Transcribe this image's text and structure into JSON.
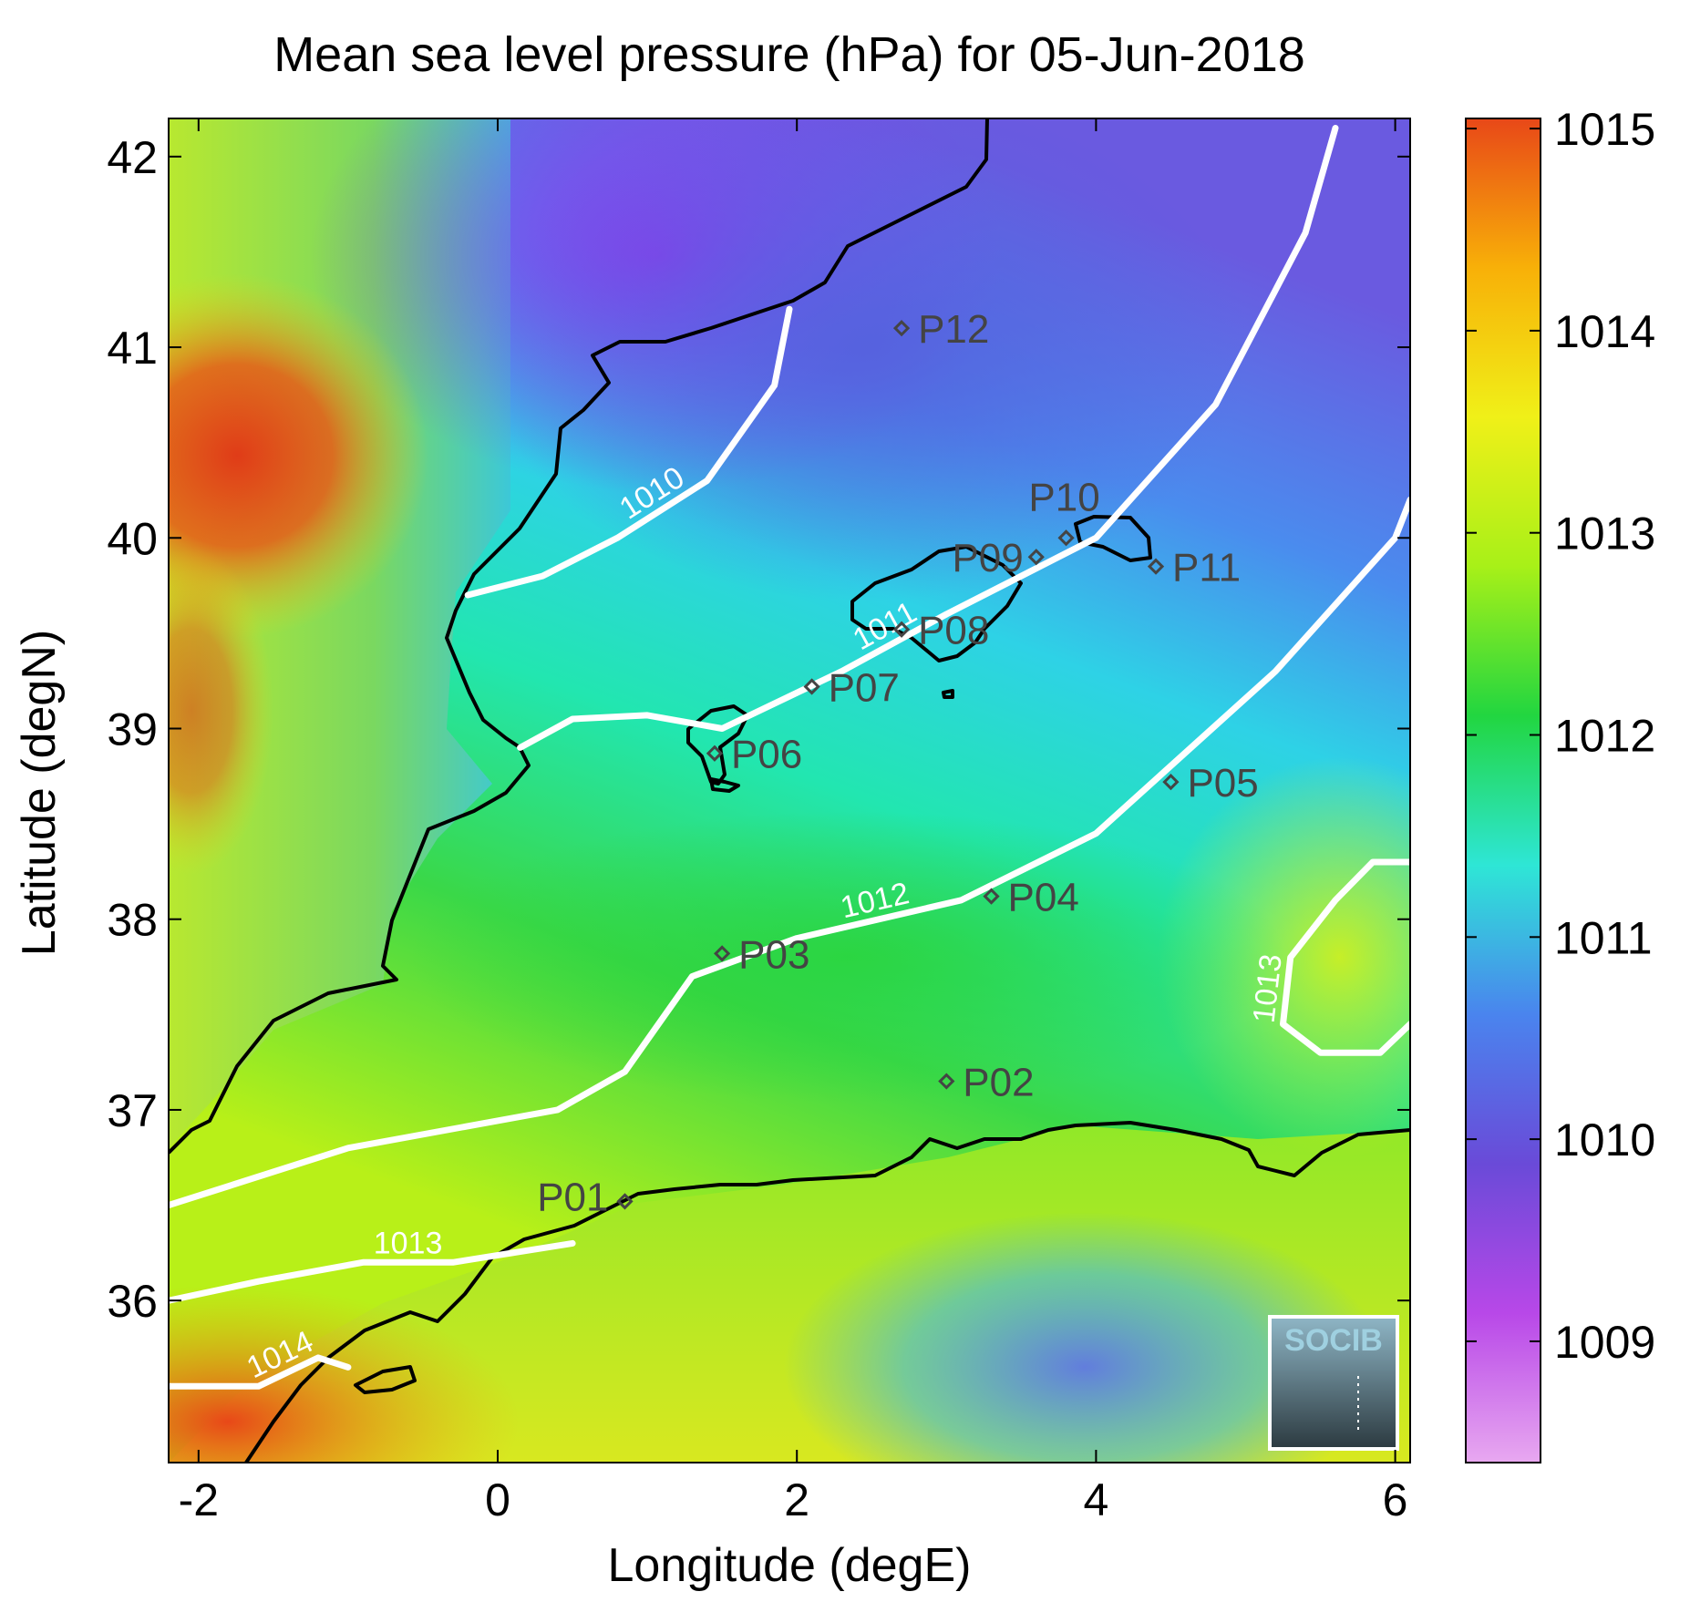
{
  "title": "Mean sea level pressure (hPa) for 05-Jun-2018",
  "xlabel": "Longitude (degE)",
  "ylabel": "Latitude (degN)",
  "logo_text": "SOCIB",
  "chart_data": {
    "type": "heatmap",
    "title": "Mean sea level pressure (hPa) for 05-Jun-2018",
    "xlabel": "Longitude (degE)",
    "ylabel": "Latitude (degN)",
    "xlim": [
      -2.2,
      6.1
    ],
    "ylim": [
      35.15,
      42.2
    ],
    "x_ticks": [
      {
        "value": -2,
        "label": "-2"
      },
      {
        "value": 0,
        "label": "0"
      },
      {
        "value": 2,
        "label": "2"
      },
      {
        "value": 4,
        "label": "4"
      },
      {
        "value": 6,
        "label": "6"
      }
    ],
    "y_ticks": [
      {
        "value": 36,
        "label": "36"
      },
      {
        "value": 37,
        "label": "37"
      },
      {
        "value": 38,
        "label": "38"
      },
      {
        "value": 39,
        "label": "39"
      },
      {
        "value": 40,
        "label": "40"
      },
      {
        "value": 41,
        "label": "41"
      },
      {
        "value": 42,
        "label": "42"
      }
    ],
    "colorbar": {
      "range": [
        1008.4,
        1015.05
      ],
      "ticks": [
        {
          "value": 1009,
          "label": "1009"
        },
        {
          "value": 1010,
          "label": "1010"
        },
        {
          "value": 1011,
          "label": "1011"
        },
        {
          "value": 1012,
          "label": "1012"
        },
        {
          "value": 1013,
          "label": "1013"
        },
        {
          "value": 1014,
          "label": "1014"
        },
        {
          "value": 1015,
          "label": "1015"
        }
      ],
      "colors": [
        "#e8a8f0",
        "#b848e8",
        "#6a4ad8",
        "#4a84ee",
        "#2ee6d6",
        "#22d640",
        "#a8f018",
        "#f0f018",
        "#f8b008",
        "#e84818"
      ]
    },
    "stations": [
      {
        "name": "P01",
        "lon": 0.85,
        "lat": 36.52
      },
      {
        "name": "P02",
        "lon": 3.0,
        "lat": 37.15
      },
      {
        "name": "P03",
        "lon": 1.5,
        "lat": 37.82
      },
      {
        "name": "P04",
        "lon": 3.3,
        "lat": 38.12
      },
      {
        "name": "P05",
        "lon": 4.5,
        "lat": 38.72
      },
      {
        "name": "P06",
        "lon": 1.45,
        "lat": 38.87
      },
      {
        "name": "P07",
        "lon": 2.1,
        "lat": 39.22
      },
      {
        "name": "P08",
        "lon": 2.7,
        "lat": 39.52
      },
      {
        "name": "P09",
        "lon": 3.6,
        "lat": 39.9
      },
      {
        "name": "P10",
        "lon": 3.8,
        "lat": 40.0
      },
      {
        "name": "P11",
        "lon": 4.4,
        "lat": 39.85
      },
      {
        "name": "P12",
        "lon": 2.7,
        "lat": 41.1
      }
    ],
    "contours": [
      {
        "level": 1010,
        "label": "1010",
        "points": [
          [
            -0.2,
            39.7
          ],
          [
            0.3,
            39.8
          ],
          [
            0.8,
            40.0
          ],
          [
            1.4,
            40.3
          ],
          [
            1.85,
            40.8
          ],
          [
            1.95,
            41.2
          ]
        ]
      },
      {
        "level": 1011,
        "label": "1011",
        "points": [
          [
            0.15,
            38.9
          ],
          [
            0.5,
            39.05
          ],
          [
            1.0,
            39.07
          ],
          [
            1.5,
            39.0
          ],
          [
            2.3,
            39.3
          ],
          [
            3.0,
            39.6
          ],
          [
            4.0,
            40.0
          ],
          [
            4.8,
            40.7
          ],
          [
            5.4,
            41.6
          ],
          [
            5.6,
            42.15
          ]
        ]
      },
      {
        "level": 1012,
        "label": "1012",
        "points": [
          [
            -2.2,
            36.5
          ],
          [
            -1.0,
            36.8
          ],
          [
            0.4,
            37.0
          ],
          [
            0.85,
            37.2
          ],
          [
            1.3,
            37.7
          ],
          [
            2.0,
            37.9
          ],
          [
            3.1,
            38.1
          ],
          [
            4.0,
            38.45
          ],
          [
            5.2,
            39.3
          ],
          [
            6.0,
            40.0
          ],
          [
            6.1,
            40.2
          ]
        ]
      },
      {
        "level": 1013,
        "label": "1013",
        "points": [
          [
            -2.2,
            36.0
          ],
          [
            -1.6,
            36.1
          ],
          [
            -0.9,
            36.2
          ],
          [
            -0.3,
            36.2
          ],
          [
            0.5,
            36.3
          ]
        ]
      },
      {
        "level": 1013,
        "label": "1013",
        "points": [
          [
            6.1,
            37.45
          ],
          [
            5.9,
            37.3
          ],
          [
            5.5,
            37.3
          ],
          [
            5.25,
            37.45
          ],
          [
            5.3,
            37.8
          ],
          [
            5.6,
            38.1
          ],
          [
            5.85,
            38.3
          ],
          [
            6.1,
            38.3
          ]
        ]
      },
      {
        "level": 1014,
        "label": "1014",
        "points": [
          [
            -2.2,
            35.55
          ],
          [
            -1.6,
            35.55
          ],
          [
            -1.2,
            35.7
          ],
          [
            -1.0,
            35.65
          ]
        ]
      }
    ],
    "grid": false,
    "legend": "colorbar-right"
  }
}
